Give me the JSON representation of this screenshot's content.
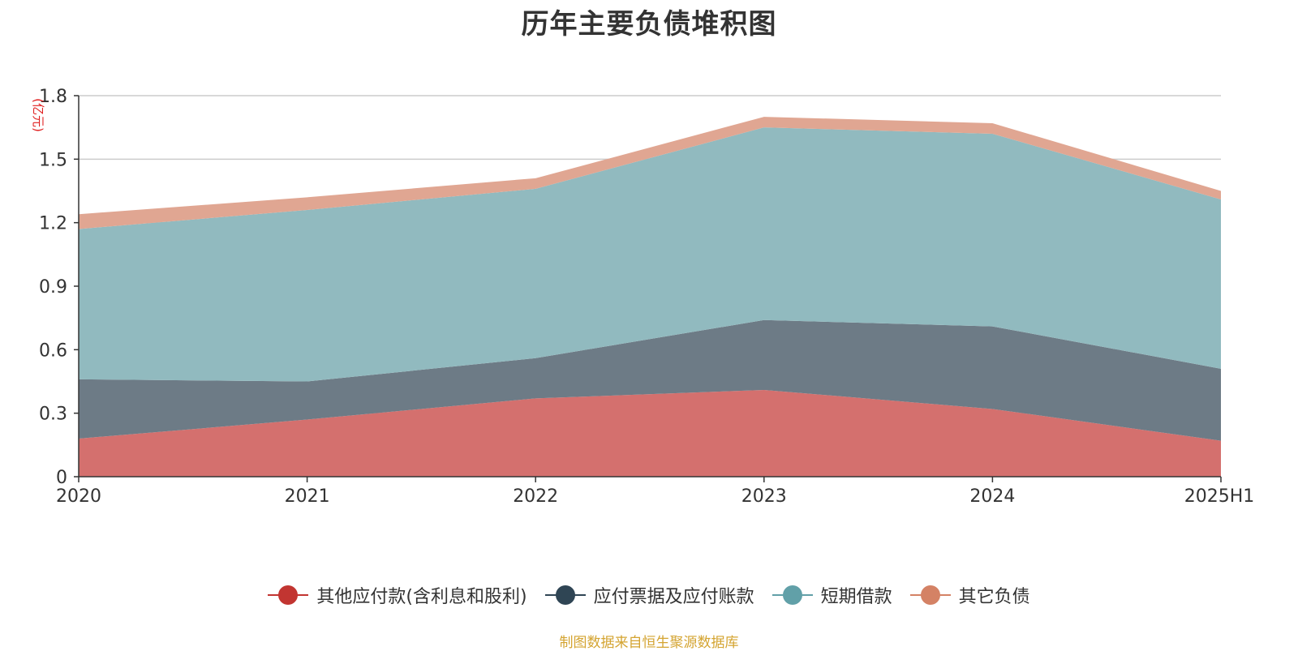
{
  "title": "历年主要负债堆积图",
  "source_note": "制图数据来自恒生聚源数据库",
  "colors": {
    "grid": "#cccccc",
    "axis": "#333333",
    "unit": "#e02020",
    "text": "#333333"
  },
  "chart_data": {
    "type": "area",
    "stacked": true,
    "title": "历年主要负债堆积图",
    "ylabel": "(亿元)",
    "xlabel": "",
    "categories": [
      "2020",
      "2021",
      "2022",
      "2023",
      "2024",
      "2025H1"
    ],
    "ylim": [
      0,
      1.8
    ],
    "yticks": [
      0,
      0.3,
      0.6,
      0.9,
      1.2,
      1.5,
      1.8
    ],
    "ytick_labels": [
      "0",
      "0.3",
      "0.6",
      "0.9",
      "1.2",
      "1.5",
      "1.8"
    ],
    "grid": true,
    "legend_position": "bottom",
    "series": [
      {
        "name": "其他应付款(含利息和股利)",
        "values": [
          0.18,
          0.27,
          0.37,
          0.41,
          0.32,
          0.17
        ],
        "color": "#c23531",
        "fill": "#d4706e"
      },
      {
        "name": "应付票据及应付账款",
        "values": [
          0.28,
          0.18,
          0.19,
          0.33,
          0.39,
          0.34
        ],
        "color": "#2f4554",
        "fill": "#6d7b86"
      },
      {
        "name": "短期借款",
        "values": [
          0.71,
          0.81,
          0.8,
          0.91,
          0.91,
          0.8
        ],
        "color": "#61a0a8",
        "fill": "#91babf"
      },
      {
        "name": "其它负债",
        "values": [
          0.07,
          0.06,
          0.05,
          0.05,
          0.05,
          0.04
        ],
        "color": "#d48265",
        "fill": "#e0a692"
      }
    ]
  }
}
